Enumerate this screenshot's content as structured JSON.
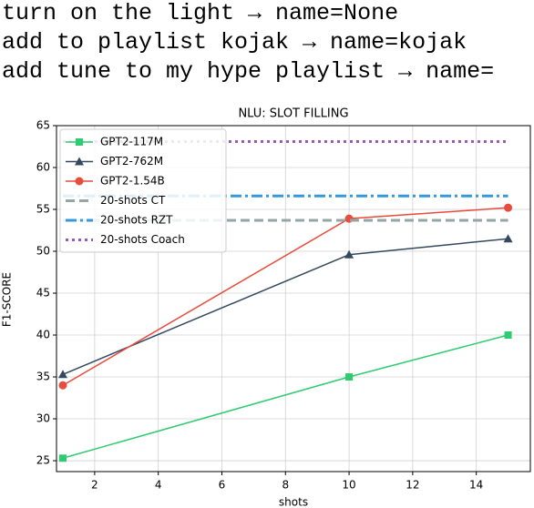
{
  "text_lines": [
    "turn on the light → name=None",
    "add to playlist kojak → name=kojak",
    "add tune to my hype playlist → name="
  ],
  "chart_data": {
    "type": "line",
    "title": "NLU: SLOT FILLING",
    "x_label": "shots",
    "y_label": "F1-SCORE",
    "xlim": [
      0.8,
      15.7
    ],
    "ylim": [
      23.7,
      65
    ],
    "xticks": [
      2,
      4,
      6,
      8,
      10,
      12,
      14
    ],
    "yticks": [
      25,
      30,
      35,
      40,
      45,
      50,
      55,
      60,
      65
    ],
    "grid": true,
    "legend": "upper left",
    "series": [
      {
        "name": "GPT2-117M",
        "color": "#2ecc71",
        "marker": "square",
        "style": "solid",
        "x": [
          1,
          10,
          15
        ],
        "values": [
          25.3,
          35,
          40
        ]
      },
      {
        "name": "GPT2-762M",
        "color": "#34495e",
        "marker": "triangle",
        "style": "solid",
        "x": [
          1,
          10,
          15
        ],
        "values": [
          35.3,
          49.6,
          51.5
        ]
      },
      {
        "name": "GPT2-1.54B",
        "color": "#e74c3c",
        "marker": "circle",
        "style": "solid",
        "x": [
          1,
          10,
          15
        ],
        "values": [
          34,
          53.9,
          55.2
        ]
      },
      {
        "name": "20-shots CT",
        "color": "#95a5a6",
        "style": "dashed",
        "x": [
          1,
          15
        ],
        "values": [
          53.7,
          53.7
        ]
      },
      {
        "name": "20-shots RZT",
        "color": "#3498db",
        "style": "dashdot",
        "x": [
          1,
          15
        ],
        "values": [
          56.6,
          56.6
        ]
      },
      {
        "name": "20-shots Coach",
        "color": "#9b59b6",
        "style": "dotted",
        "x": [
          1,
          15
        ],
        "values": [
          63.1,
          63.1
        ]
      }
    ]
  }
}
